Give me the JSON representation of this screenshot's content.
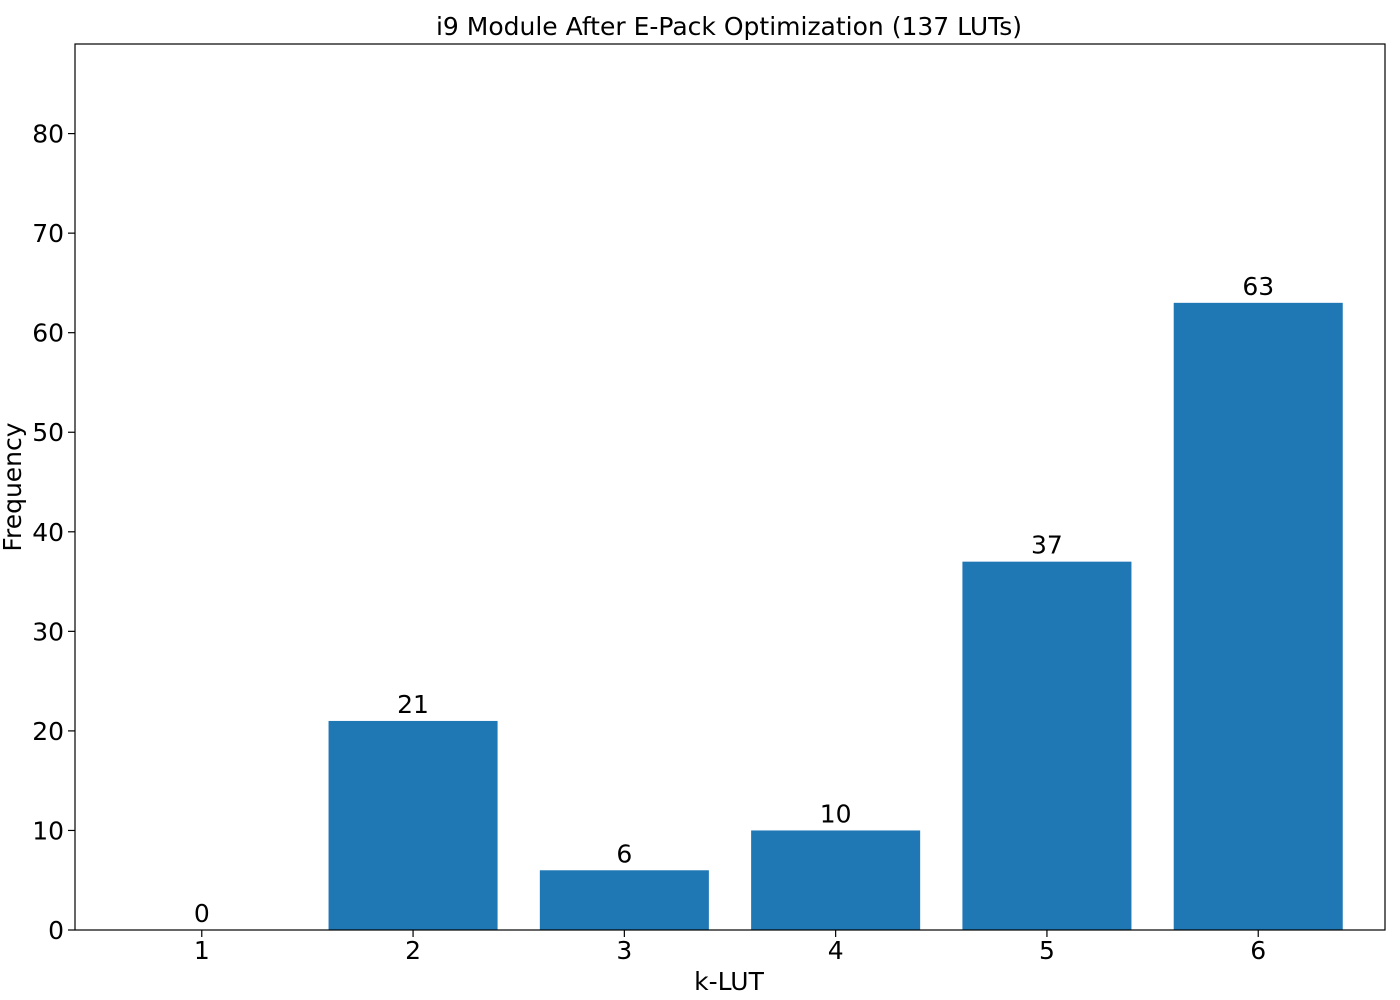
{
  "chart_data": {
    "type": "bar",
    "title": "i9 Module After E-Pack Optimization (137 LUTs)",
    "xlabel": "k-LUT",
    "ylabel": "Frequency",
    "categories": [
      "1",
      "2",
      "3",
      "4",
      "5",
      "6"
    ],
    "values": [
      0,
      21,
      6,
      10,
      37,
      63
    ],
    "ylim": [
      0,
      89
    ],
    "yticks": [
      0,
      10,
      20,
      30,
      40,
      50,
      60,
      70,
      80
    ],
    "bar_color": "#1f77b4",
    "grid": false,
    "legend": "none",
    "data_labels": true
  }
}
